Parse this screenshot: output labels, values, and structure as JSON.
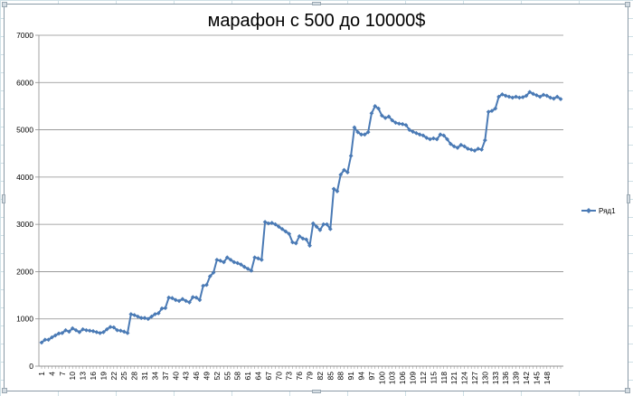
{
  "chart_data": {
    "type": "line",
    "title": "марафон с 500 до 10000$",
    "xlabel": "",
    "ylabel": "",
    "ylim": [
      0,
      7000
    ],
    "yticks": [
      "0",
      "1000",
      "2000",
      "3000",
      "4000",
      "5000",
      "6000",
      "7000"
    ],
    "xticks": [
      "1",
      "4",
      "7",
      "10",
      "13",
      "16",
      "19",
      "22",
      "25",
      "28",
      "31",
      "34",
      "37",
      "40",
      "43",
      "46",
      "49",
      "52",
      "55",
      "58",
      "61",
      "64",
      "67",
      "70",
      "73",
      "76",
      "79",
      "82",
      "85",
      "88",
      "91",
      "94",
      "97",
      "100",
      "103",
      "106",
      "109",
      "112",
      "115",
      "118",
      "121",
      "124",
      "127",
      "130",
      "133",
      "136",
      "139",
      "142",
      "145",
      "148"
    ],
    "grid": "horizontal",
    "legend_position": "right",
    "line_color": "#4a7ab5",
    "series": [
      {
        "name": "Ряд1",
        "values": [
          500,
          560,
          560,
          610,
          650,
          690,
          700,
          760,
          730,
          800,
          760,
          720,
          780,
          760,
          750,
          740,
          720,
          700,
          720,
          780,
          830,
          820,
          760,
          750,
          730,
          700,
          1100,
          1080,
          1050,
          1020,
          1020,
          1000,
          1050,
          1100,
          1120,
          1220,
          1230,
          1450,
          1440,
          1400,
          1380,
          1420,
          1380,
          1350,
          1460,
          1450,
          1400,
          1700,
          1720,
          1900,
          1980,
          2250,
          2230,
          2200,
          2300,
          2250,
          2200,
          2180,
          2150,
          2100,
          2060,
          2020,
          2300,
          2280,
          2250,
          3050,
          3020,
          3030,
          3000,
          2950,
          2900,
          2850,
          2800,
          2620,
          2600,
          2750,
          2700,
          2680,
          2550,
          3020,
          2950,
          2880,
          3000,
          3000,
          2900,
          3750,
          3700,
          4050,
          4150,
          4100,
          4450,
          5050,
          4950,
          4900,
          4900,
          4950,
          5350,
          5500,
          5450,
          5300,
          5250,
          5280,
          5200,
          5150,
          5130,
          5120,
          5100,
          5000,
          4960,
          4930,
          4900,
          4880,
          4830,
          4800,
          4820,
          4800,
          4900,
          4880,
          4800,
          4700,
          4650,
          4620,
          4680,
          4650,
          4600,
          4580,
          4560,
          4600,
          4580,
          4780,
          5380,
          5400,
          5450,
          5700,
          5750,
          5720,
          5700,
          5680,
          5700,
          5680,
          5690,
          5720,
          5800,
          5760,
          5730,
          5700,
          5740,
          5720,
          5680,
          5660,
          5700,
          5650
        ]
      }
    ]
  }
}
